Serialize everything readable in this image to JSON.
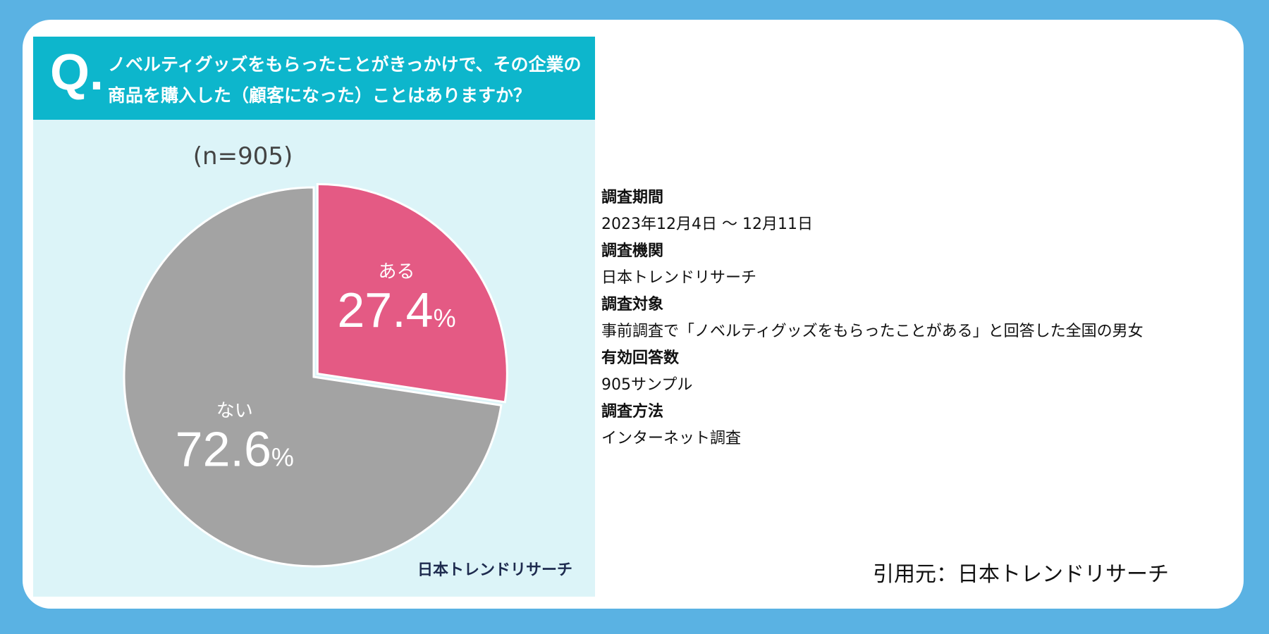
{
  "chart_data": {
    "type": "pie",
    "title": "ノベルティグッズをもらったことがきっかけで、その企業の商品を購入した（顧客になった）ことはありますか？",
    "title_lines": [
      "ノベルティグッズをもらったことがきっかけで、その企業の",
      "商品を購入した（顧客になった）ことはありますか？"
    ],
    "q_mark": "Q.",
    "sample": "(n=905)",
    "slices": [
      {
        "label": "ある",
        "value": 27.4,
        "display": "27.4",
        "color": "#e45a84"
      },
      {
        "label": "ない",
        "value": 72.6,
        "display": "72.6",
        "color": "#a3a3a3"
      }
    ],
    "unit": "%",
    "logo": "日本トレンドリサーチ"
  },
  "info": [
    {
      "heading": "調査期間",
      "value": "2023年12月4日 〜 12月11日"
    },
    {
      "heading": "調査機関",
      "value": "日本トレンドリサーチ"
    },
    {
      "heading": "調査対象",
      "value": "事前調査で「ノベルティグッズをもらったことがある」と回答した全国の男女"
    },
    {
      "heading": "有効回答数",
      "value": "905サンプル"
    },
    {
      "heading": "調査方法",
      "value": "インターネット調査"
    }
  ],
  "citation": "引用元：日本トレンドリサーチ",
  "colors": {
    "background": "#5ab2e3",
    "header": "#0db6cc",
    "panel": "#dcf4f8"
  }
}
